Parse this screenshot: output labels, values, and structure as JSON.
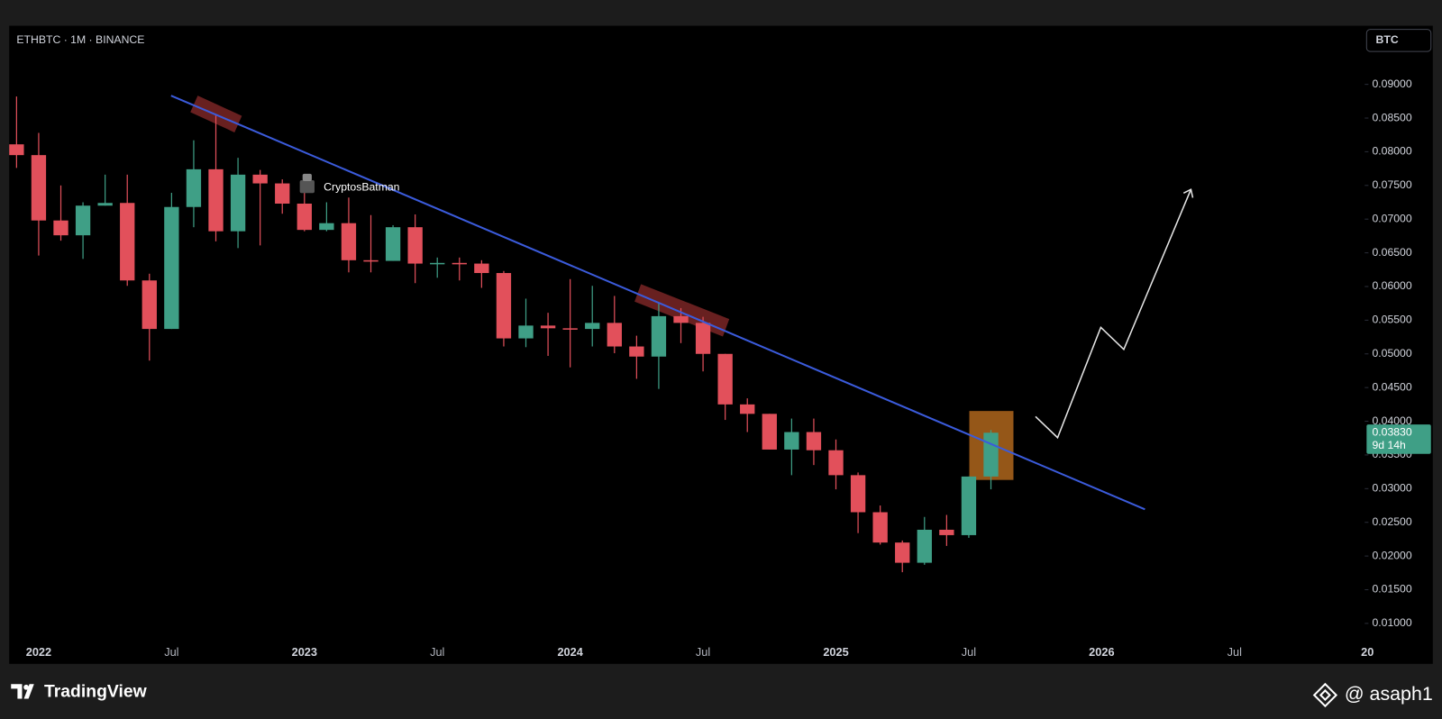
{
  "chart_data": {
    "type": "candlestick",
    "title": "ETHBTC · 1M · BINANCE",
    "price_axis_unit": "BTC",
    "watermark": "CryptosBatman",
    "up_color": "#3f9f86",
    "down_color": "#e2505b",
    "categories": [
      null,
      "2022",
      null,
      null,
      null,
      null,
      null,
      "Jul",
      null,
      null,
      null,
      null,
      null,
      "2023",
      null,
      null,
      null,
      null,
      null,
      "Jul",
      null,
      null,
      null,
      null,
      null,
      "2024",
      null,
      null,
      null,
      null,
      null,
      "Jul",
      null,
      null,
      null,
      null,
      null,
      "2025",
      null,
      null,
      null,
      null,
      null,
      "Jul",
      null,
      null,
      null,
      null,
      null,
      "2026",
      null,
      null,
      null,
      null,
      null,
      "Jul",
      null,
      null,
      null,
      null,
      null,
      "20"
    ],
    "open": [
      0.0811,
      0.0795,
      0.0698,
      0.0676,
      0.072,
      0.0724,
      0.0609,
      0.0537,
      0.0718,
      0.0774,
      0.0682,
      0.0766,
      0.0753,
      0.0723,
      0.0684,
      0.0694,
      0.0639,
      0.0638,
      0.0688,
      0.0634,
      0.0635,
      0.0634,
      0.062,
      0.0523,
      0.0542,
      0.0538,
      0.0537,
      0.0546,
      0.0511,
      0.0496,
      0.0556,
      0.0546,
      0.05,
      0.0425,
      0.0411,
      0.0358,
      0.0384,
      0.0357,
      0.032,
      0.0265,
      0.022,
      0.019,
      0.0239,
      0.0231,
      0.0318,
      null,
      null,
      null,
      null,
      null,
      null,
      null,
      null,
      null,
      null,
      null,
      null,
      null,
      null,
      null,
      null,
      null
    ],
    "high": [
      0.0882,
      0.0828,
      0.075,
      0.0725,
      0.0766,
      0.0766,
      0.0619,
      0.0739,
      0.0817,
      0.0855,
      0.0791,
      0.0773,
      0.0759,
      0.0746,
      0.0725,
      0.0732,
      0.0706,
      0.0691,
      0.0707,
      0.0643,
      0.0643,
      0.0639,
      0.0623,
      0.0582,
      0.0561,
      0.0611,
      0.0601,
      0.0586,
      0.0527,
      0.0575,
      0.0568,
      0.0555,
      0.05,
      0.0434,
      0.0411,
      0.0404,
      0.0404,
      0.0373,
      0.0324,
      0.0275,
      0.0223,
      0.0258,
      0.0261,
      0.0318,
      0.0387,
      null,
      null,
      null,
      null,
      null,
      null,
      null,
      null,
      null,
      null,
      null,
      null,
      null,
      null,
      null,
      null,
      null
    ],
    "low": [
      0.0776,
      0.0646,
      0.0668,
      0.0641,
      0.072,
      0.0601,
      0.049,
      0.0537,
      0.0688,
      0.0667,
      0.0657,
      0.0661,
      0.0708,
      0.0682,
      0.0682,
      0.0621,
      0.0621,
      0.0638,
      0.0605,
      0.0613,
      0.0609,
      0.0598,
      0.0511,
      0.051,
      0.0497,
      0.048,
      0.0511,
      0.0501,
      0.0463,
      0.0448,
      0.0516,
      0.0474,
      0.0402,
      0.0384,
      0.0358,
      0.032,
      0.0335,
      0.0299,
      0.0234,
      0.0217,
      0.0176,
      0.0187,
      0.0215,
      0.0227,
      0.0299,
      null,
      null,
      null,
      null,
      null,
      null,
      null,
      null,
      null,
      null,
      null,
      null,
      null,
      null,
      null,
      null,
      null
    ],
    "close": [
      0.0795,
      0.0698,
      0.0676,
      0.072,
      0.0724,
      0.0609,
      0.0537,
      0.0718,
      0.0774,
      0.0682,
      0.0766,
      0.0753,
      0.0723,
      0.0684,
      0.0694,
      0.0639,
      0.0638,
      0.0688,
      0.0634,
      0.0635,
      0.0634,
      0.062,
      0.0523,
      0.0542,
      0.0538,
      0.0537,
      0.0546,
      0.0511,
      0.0496,
      0.0556,
      0.0546,
      0.05,
      0.0425,
      0.0411,
      0.0358,
      0.0384,
      0.0357,
      0.032,
      0.0265,
      0.022,
      0.019,
      0.0239,
      0.0231,
      0.0318,
      0.0383,
      null,
      null,
      null,
      null,
      null,
      null,
      null,
      null,
      null,
      null,
      null,
      null,
      null,
      null,
      null,
      null,
      null
    ],
    "ylim": [
      0.004,
      0.0987
    ],
    "yticks": [
      {
        "value": 0.01,
        "label": "0.01000"
      },
      {
        "value": 0.015,
        "label": "0.01500"
      },
      {
        "value": 0.02,
        "label": "0.02000"
      },
      {
        "value": 0.025,
        "label": "0.02500"
      },
      {
        "value": 0.03,
        "label": "0.03000"
      },
      {
        "value": 0.035,
        "label": "0.03500"
      },
      {
        "value": 0.04,
        "label": "0.04000"
      },
      {
        "value": 0.045,
        "label": "0.04500"
      },
      {
        "value": 0.05,
        "label": "0.05000"
      },
      {
        "value": 0.055,
        "label": "0.05500"
      },
      {
        "value": 0.06,
        "label": "0.06000"
      },
      {
        "value": 0.065,
        "label": "0.06500"
      },
      {
        "value": 0.07,
        "label": "0.07000"
      },
      {
        "value": 0.075,
        "label": "0.07500"
      },
      {
        "value": 0.08,
        "label": "0.08000"
      },
      {
        "value": 0.085,
        "label": "0.08500"
      },
      {
        "value": 0.09,
        "label": "0.09000"
      }
    ],
    "price_tag": {
      "value": 0.0383,
      "label": "0.03830",
      "countdown": "9d 14h"
    },
    "grid": false
  },
  "footer": {
    "brand": "TradingView",
    "handle": "@ asaph1"
  }
}
